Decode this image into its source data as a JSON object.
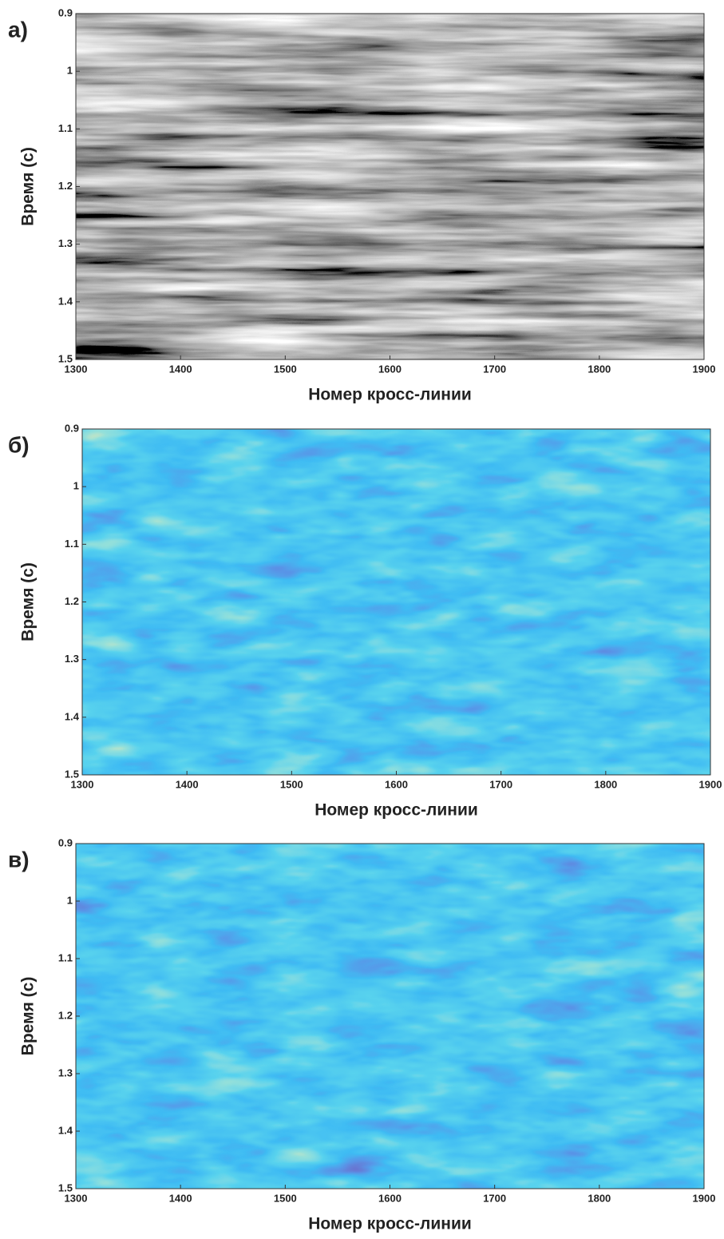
{
  "chart_data": [
    {
      "type": "image",
      "panel_label": "а)",
      "colormap": "gray",
      "xlabel": "Номер кросс-линии",
      "ylabel": "Время (с)",
      "xlim": [
        1300,
        1900
      ],
      "ylim": [
        1.5,
        0.9
      ],
      "xticks": [
        1300,
        1400,
        1500,
        1600,
        1700,
        1800,
        1900
      ],
      "yticks": [
        0.9,
        1,
        1.1,
        1.2,
        1.3,
        1.4,
        1.5
      ]
    },
    {
      "type": "image",
      "panel_label": "б)",
      "colormap": "parula",
      "xlabel": "Номер кросс-линии",
      "ylabel": "Время (с)",
      "xlim": [
        1300,
        1900
      ],
      "ylim": [
        1.5,
        0.9
      ],
      "xticks": [
        1300,
        1400,
        1500,
        1600,
        1700,
        1800,
        1900
      ],
      "yticks": [
        0.9,
        1,
        1.1,
        1.2,
        1.3,
        1.4,
        1.5
      ]
    },
    {
      "type": "image",
      "panel_label": "в)",
      "colormap": "parula",
      "xlabel": "Номер кросс-линии",
      "ylabel": "Время (с)",
      "xlim": [
        1300,
        1900
      ],
      "ylim": [
        1.5,
        0.9
      ],
      "xticks": [
        1300,
        1400,
        1500,
        1600,
        1700,
        1800,
        1900
      ],
      "yticks": [
        0.9,
        1,
        1.1,
        1.2,
        1.3,
        1.4,
        1.5
      ]
    }
  ]
}
